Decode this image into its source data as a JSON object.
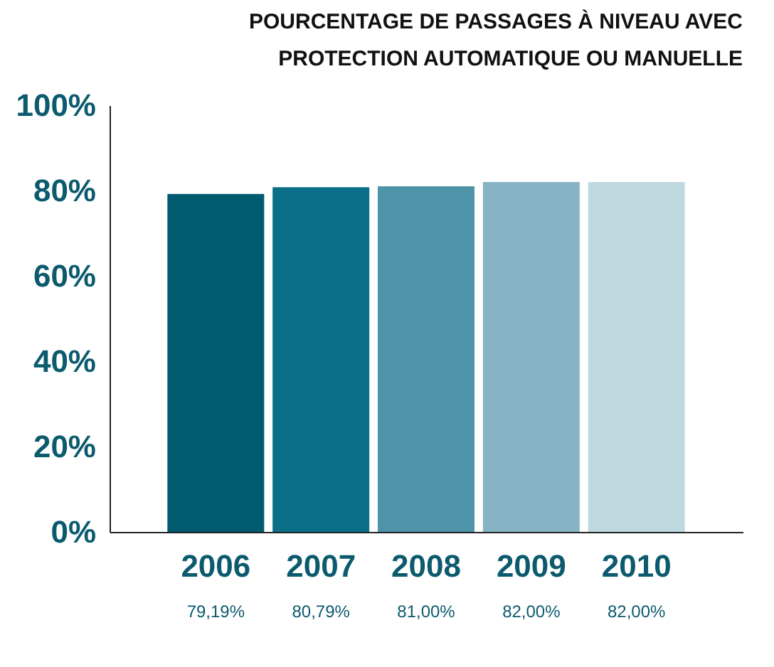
{
  "chart_data": {
    "type": "bar",
    "title": [
      "POURCENTAGE DE PASSAGES À NIVEAU AVEC",
      "PROTECTION AUTOMATIQUE OU MANUELLE"
    ],
    "categories": [
      "2006",
      "2007",
      "2008",
      "2009",
      "2010"
    ],
    "values": [
      79.19,
      80.79,
      81.0,
      82.0,
      82.0
    ],
    "colors": [
      "#005a70",
      "#0a7089",
      "#4f93a8",
      "#86b4c4",
      "#bfd9e1"
    ],
    "value_labels": [
      "79,19%",
      "80,79%",
      "81,00%",
      "82,00%",
      "82,00%"
    ],
    "ylim": [
      0,
      100
    ],
    "yticks": [
      {
        "value": 0,
        "label": "0%"
      },
      {
        "value": 20,
        "label": "20%"
      },
      {
        "value": 40,
        "label": "40%"
      },
      {
        "value": 60,
        "label": "60%"
      },
      {
        "value": 80,
        "label": "80%"
      },
      {
        "value": 100,
        "label": "100%"
      }
    ],
    "grid": false
  }
}
